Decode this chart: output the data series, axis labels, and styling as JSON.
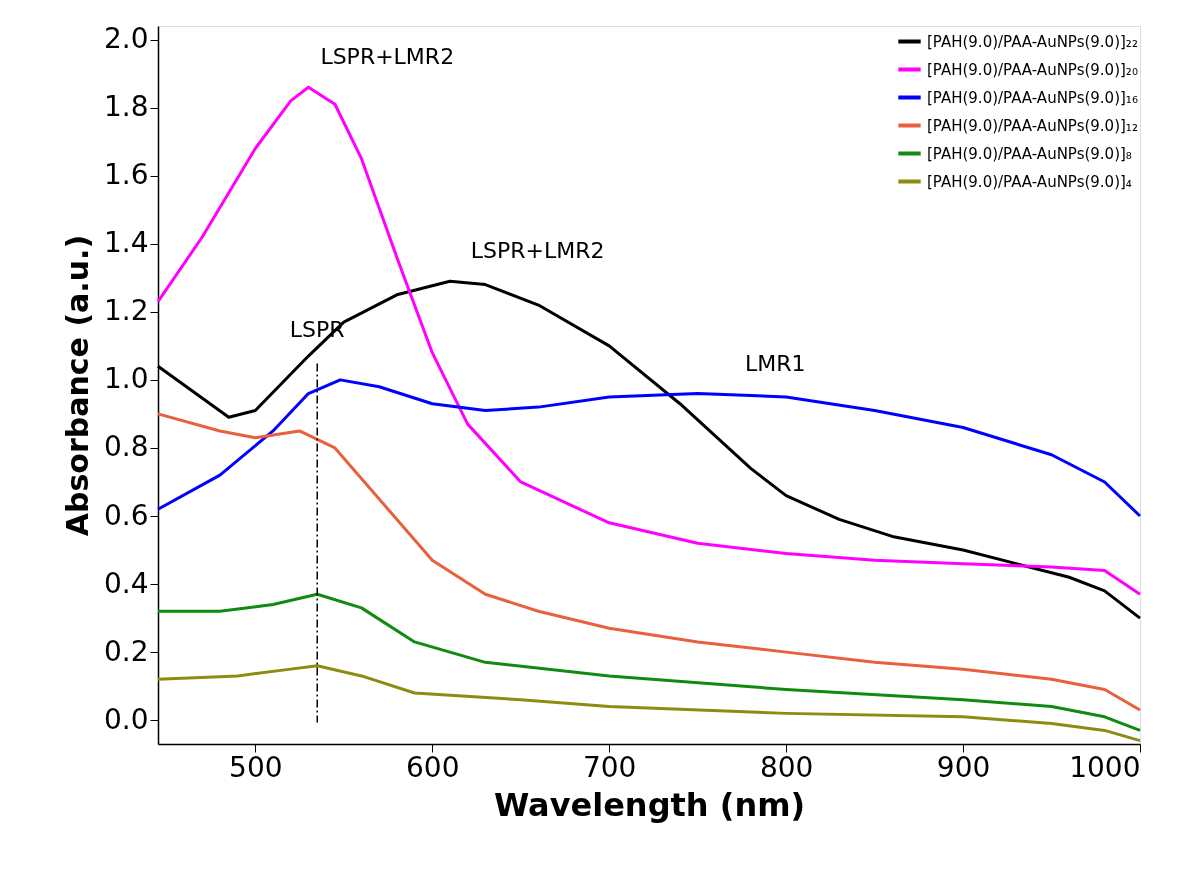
{
  "chart_data": {
    "type": "line",
    "xlabel": "Wavelength (nm)",
    "ylabel": "Absorbance (a.u.)",
    "xlim": [
      445,
      1000
    ],
    "xticks": [
      500,
      600,
      700,
      800,
      900,
      1000
    ],
    "ylim": [
      -0.07,
      2.04
    ],
    "yticks": [
      {
        "value": 0,
        "label": "0.0"
      },
      0.2,
      0.4,
      0.6,
      0.8,
      {
        "value": 1,
        "label": "1.0"
      },
      1.2,
      1.4,
      1.6,
      1.8,
      {
        "value": 2,
        "label": "2.0"
      }
    ],
    "grid": false,
    "legend": "top right",
    "marker": "none",
    "line_style": "solid",
    "series": [
      {
        "name": "[PAH(9.0)/PAA-AuNPs(9.0)]₂₂",
        "color": "#000000",
        "x": [
          445,
          485,
          500,
          530,
          550,
          580,
          610,
          630,
          660,
          700,
          740,
          780,
          800,
          830,
          860,
          900,
          930,
          960,
          980,
          1000
        ],
        "values": [
          1.04,
          0.89,
          0.91,
          1.07,
          1.17,
          1.25,
          1.29,
          1.28,
          1.22,
          1.1,
          0.93,
          0.74,
          0.66,
          0.59,
          0.54,
          0.5,
          0.46,
          0.42,
          0.38,
          0.3
        ]
      },
      {
        "name": "[PAH(9.0)/PAA-AuNPs(9.0)]₂₀",
        "color": "#ff00ff",
        "x": [
          445,
          470,
          500,
          520,
          530,
          545,
          560,
          580,
          600,
          620,
          650,
          700,
          750,
          800,
          850,
          900,
          950,
          980,
          1000
        ],
        "values": [
          1.23,
          1.42,
          1.68,
          1.82,
          1.86,
          1.81,
          1.65,
          1.36,
          1.08,
          0.87,
          0.7,
          0.58,
          0.52,
          0.49,
          0.47,
          0.46,
          0.45,
          0.44,
          0.37
        ]
      },
      {
        "name": "[PAH(9.0)/PAA-AuNPs(9.0)]₁₆",
        "color": "#0000ff",
        "x": [
          445,
          480,
          510,
          530,
          548,
          570,
          600,
          630,
          660,
          700,
          750,
          800,
          850,
          900,
          950,
          980,
          1000
        ],
        "values": [
          0.62,
          0.72,
          0.85,
          0.96,
          1.0,
          0.98,
          0.93,
          0.91,
          0.92,
          0.95,
          0.96,
          0.95,
          0.91,
          0.86,
          0.78,
          0.7,
          0.6
        ]
      },
      {
        "name": "[PAH(9.0)/PAA-AuNPs(9.0)]₁₂",
        "color": "#e8603c",
        "x": [
          445,
          480,
          500,
          525,
          545,
          570,
          600,
          630,
          660,
          700,
          750,
          800,
          850,
          900,
          950,
          980,
          1000
        ],
        "values": [
          0.9,
          0.85,
          0.83,
          0.85,
          0.8,
          0.65,
          0.47,
          0.37,
          0.32,
          0.27,
          0.23,
          0.2,
          0.17,
          0.15,
          0.12,
          0.09,
          0.03
        ]
      },
      {
        "name": "[PAH(9.0)/PAA-AuNPs(9.0)]₈",
        "color": "#118a11",
        "x": [
          445,
          480,
          510,
          535,
          560,
          590,
          630,
          700,
          800,
          900,
          950,
          980,
          1000
        ],
        "values": [
          0.32,
          0.32,
          0.34,
          0.37,
          0.33,
          0.23,
          0.17,
          0.13,
          0.09,
          0.06,
          0.04,
          0.01,
          -0.03
        ]
      },
      {
        "name": "[PAH(9.0)/PAA-AuNPs(9.0)]₄",
        "color": "#8c8c10",
        "x": [
          445,
          490,
          520,
          535,
          560,
          590,
          650,
          700,
          800,
          900,
          950,
          980,
          1000
        ],
        "values": [
          0.12,
          0.13,
          0.15,
          0.16,
          0.13,
          0.08,
          0.06,
          0.04,
          0.02,
          0.01,
          -0.01,
          -0.03,
          -0.06
        ]
      }
    ],
    "ref_lines": [
      {
        "axis": "x",
        "value": 535,
        "label": "LSPR",
        "color": "#000000",
        "line_style": "dashdot"
      }
    ],
    "annotations": [
      {
        "text": "LSPR+LMR2",
        "x": 530,
        "y": 1.86
      },
      {
        "text": "LSPR+LMR2",
        "x": 615,
        "y": 1.29
      },
      {
        "text": "LMR1",
        "x": 770,
        "y": 0.96
      }
    ]
  }
}
